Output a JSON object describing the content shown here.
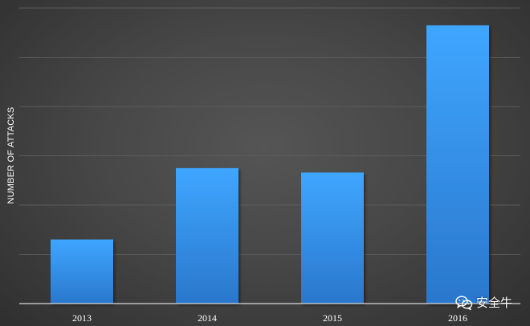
{
  "chart_data": {
    "type": "bar",
    "categories": [
      "2013",
      "2014",
      "2015",
      "2016"
    ],
    "values": [
      13,
      27.5,
      26.6,
      56.5
    ],
    "title": "",
    "xlabel": "",
    "ylabel": "NUMBER OF ATTACKS",
    "ylim": [
      0,
      60
    ],
    "gridlines": true,
    "tick_labels_y_visible": false,
    "colors": {
      "bar_top": "#3fa6ff",
      "bar_bottom": "#2a77cc",
      "grid": "#5c5c5c",
      "axis": "#d9d9d9",
      "text": "#ffffff"
    }
  },
  "watermark": {
    "text": "安全牛",
    "icon": "wechat-icon"
  }
}
